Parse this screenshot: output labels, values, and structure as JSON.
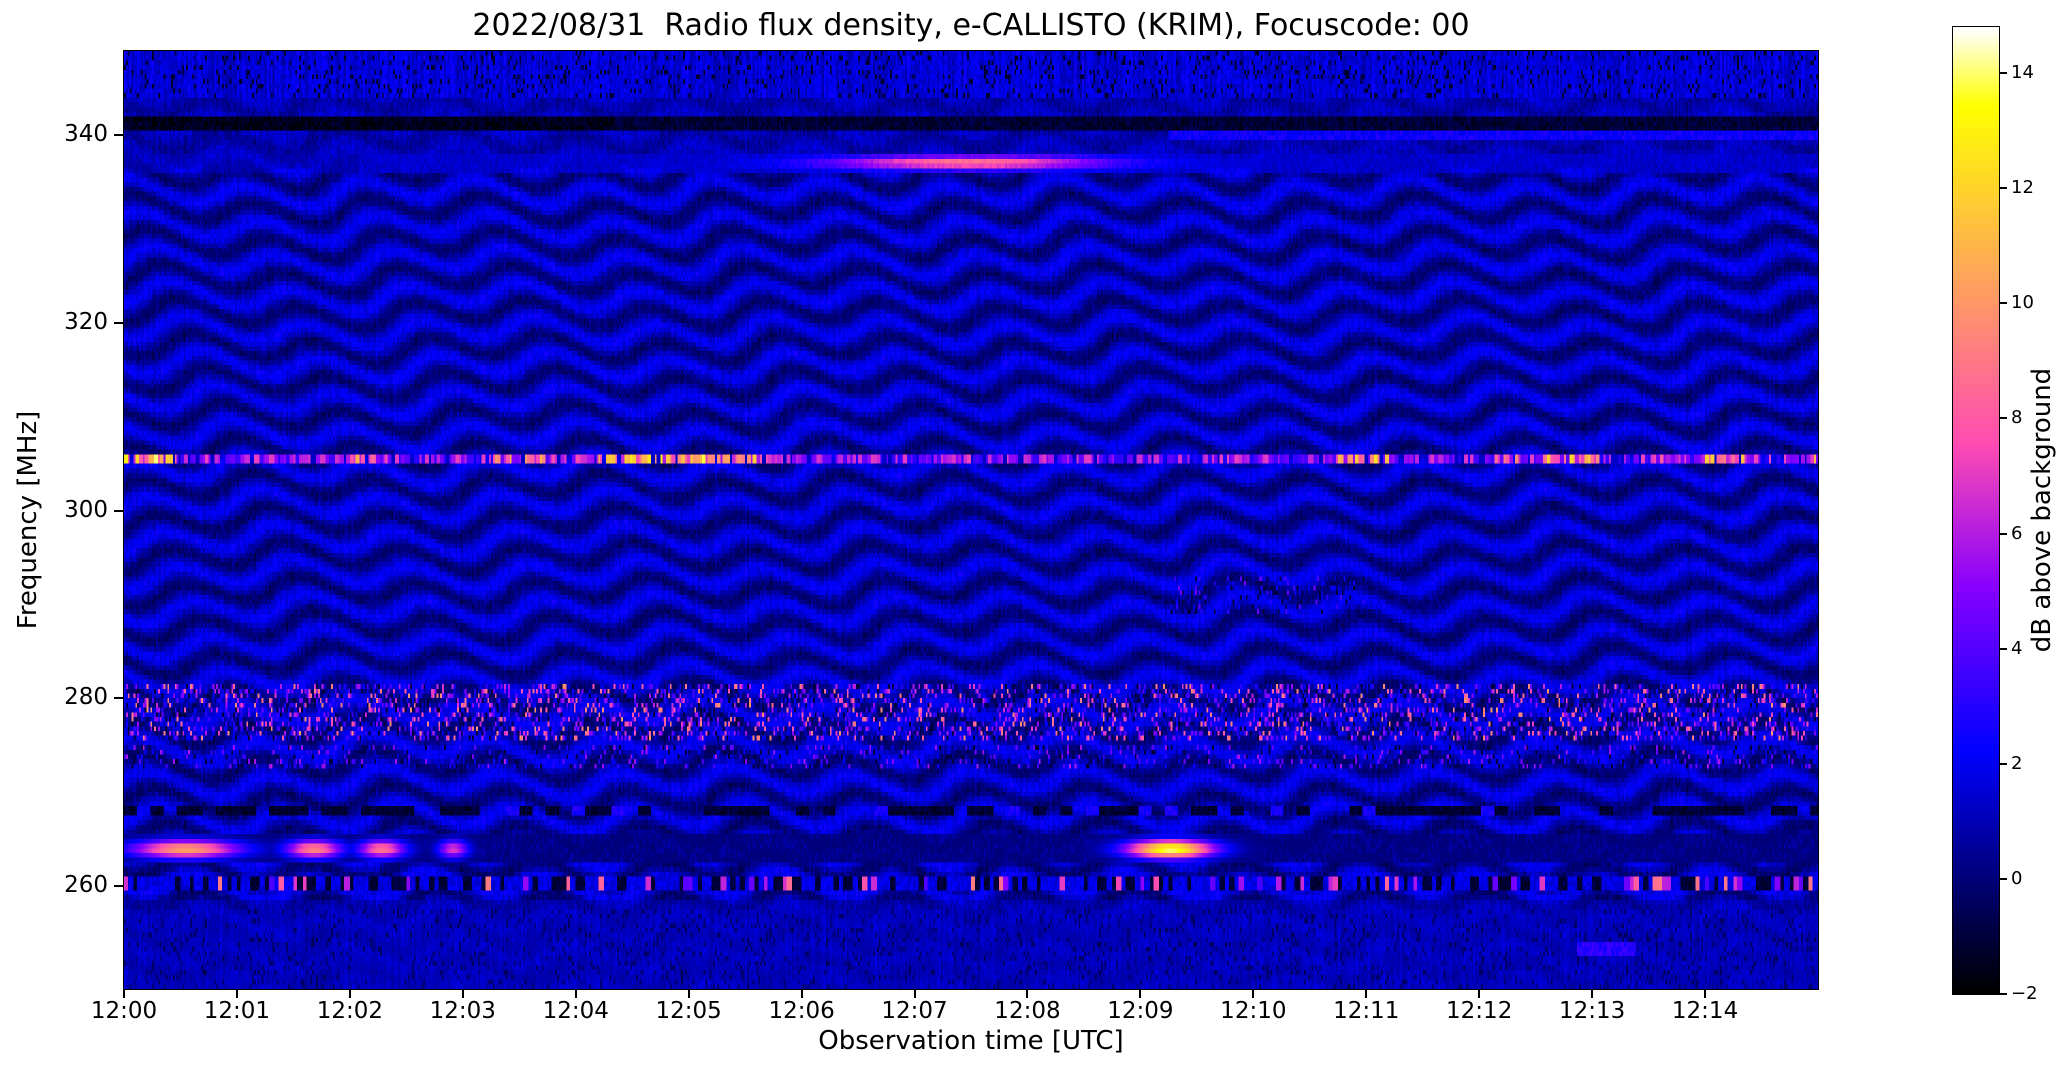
{
  "chart_data": {
    "type": "heatmap",
    "title": "2022/08/31  Radio flux density, e-CALLISTO (KRIM), Focuscode: 00",
    "xlabel": "Observation time [UTC]",
    "ylabel": "Frequency [MHz]",
    "value_label": "dB above background",
    "colormap": "gnuplot2",
    "grid": false,
    "x_ticks": [
      "12:00",
      "12:01",
      "12:02",
      "12:03",
      "12:04",
      "12:05",
      "12:06",
      "12:07",
      "12:08",
      "12:09",
      "12:10",
      "12:11",
      "12:12",
      "12:13",
      "12:14"
    ],
    "x_range_seconds": [
      0,
      900
    ],
    "y_ticks": [
      260,
      280,
      300,
      320,
      340
    ],
    "y_range_mhz": [
      249,
      349
    ],
    "value_range": [
      -2,
      14.8
    ],
    "colorbar_ticks": [
      {
        "value": -2,
        "label": "−2"
      },
      {
        "value": 0,
        "label": "0"
      },
      {
        "value": 2,
        "label": "2"
      },
      {
        "value": 4,
        "label": "4"
      },
      {
        "value": 6,
        "label": "6"
      },
      {
        "value": 8,
        "label": "8"
      },
      {
        "value": 10,
        "label": "10"
      },
      {
        "value": 12,
        "label": "12"
      },
      {
        "value": 14,
        "label": "14"
      }
    ],
    "background_pattern": {
      "description": "dark-blue background with wavy quasi-horizontal interference fringes",
      "fringe_spacing_mhz": 3.7,
      "fringe_wobble_period_s": 62,
      "fringe_wobble_amp_mhz": 1.15,
      "mean_level_db": 0.95,
      "fringe_amp_db": 1.12,
      "noise_db": 0.95,
      "flat_above_mhz": 336.5,
      "flat_below_mhz": 258.5
    },
    "features": [
      {
        "name": "band-noise-top",
        "kind": "noise_band",
        "f_lo": 343.8,
        "f_hi": 349.0,
        "amp": 2.4,
        "mix": 1.0
      },
      {
        "name": "band-noise-bottom",
        "kind": "noise_band",
        "f_lo": 249.0,
        "f_hi": 257.5,
        "amp": 1.7,
        "mix": 0.55
      },
      {
        "name": "dark-rfi-341",
        "kind": "dark_line",
        "f": 341.3,
        "width": 1.6,
        "level": -1.7
      },
      {
        "name": "blue-rfi-340-late",
        "kind": "line_segment",
        "f": 339.9,
        "width": 0.8,
        "t0": 555,
        "t1": 900,
        "level": 2.4
      },
      {
        "name": "drifting-emission-337",
        "kind": "gauss_burst",
        "f": 337.1,
        "width": 1.1,
        "t_center": 448,
        "t_sigma": 52,
        "peak": 7.8,
        "base_level": 1.3,
        "base_t0": 125
      },
      {
        "name": "dashed-rfi-305",
        "kind": "dashed_rfi",
        "f": 305.5,
        "width": 0.9,
        "base": 2.8,
        "flicker": 4.5,
        "burst_amp": 9.5
      },
      {
        "name": "speckle-rfi-278",
        "kind": "speckle_band",
        "f_lo": 275.6,
        "f_hi": 281.4,
        "density": 0.34,
        "max": 8.5
      },
      {
        "name": "speckle-rfi-273",
        "kind": "speckle_band",
        "f_lo": 272.4,
        "f_hi": 275.0,
        "density": 0.16,
        "max": 4.5
      },
      {
        "name": "speckle-291-patch",
        "kind": "speckle_band",
        "f_lo": 289.0,
        "f_hi": 293.0,
        "density": 0.13,
        "max": 3.2,
        "t0": 555,
        "t1": 660
      },
      {
        "name": "dark-dashes-268",
        "kind": "dark_dashes",
        "f": 268.0,
        "width": 1.4,
        "level": -1.6,
        "duty": 0.55
      },
      {
        "name": "burst-blobs-264",
        "kind": "blobs",
        "f": 263.9,
        "width": 1.4,
        "base_level": -0.9,
        "blobs": [
          {
            "t": 8,
            "dur": 50,
            "peak": 10.5
          },
          {
            "t": 88,
            "dur": 26,
            "peak": 9.5
          },
          {
            "t": 126,
            "dur": 22,
            "peak": 9.0
          },
          {
            "t": 168,
            "dur": 14,
            "peak": 7.0
          },
          {
            "t": 536,
            "dur": 40,
            "peak": 14.3
          }
        ]
      },
      {
        "name": "mixed-rfi-260",
        "kind": "mixed_line",
        "f": 260.2,
        "width": 1.2,
        "dark_frac": 0.3,
        "bright_frac": 0.16,
        "bright_max": 9.5
      },
      {
        "name": "blue-patch-253",
        "kind": "line_segment",
        "f": 253.2,
        "width": 1.2,
        "t0": 772,
        "t1": 803,
        "level": 3.0
      }
    ]
  }
}
